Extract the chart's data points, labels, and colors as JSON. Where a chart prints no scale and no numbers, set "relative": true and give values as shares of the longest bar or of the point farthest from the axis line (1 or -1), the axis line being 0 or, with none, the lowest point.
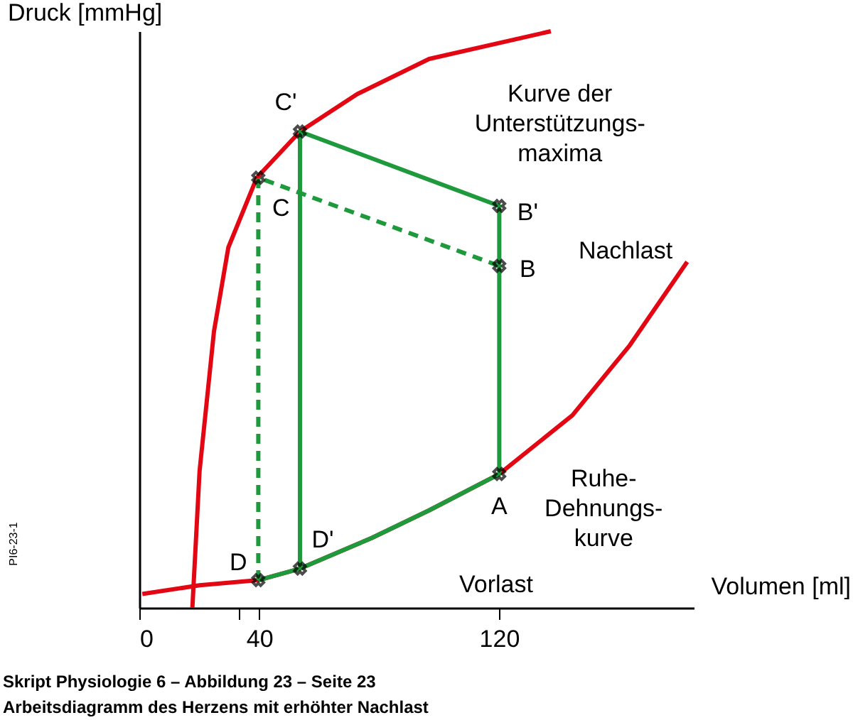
{
  "chart_data": {
    "type": "line",
    "relative": true,
    "xlabel": "Volumen [ml]",
    "ylabel": "Druck [mmHg]",
    "xlim": [
      0,
      185
    ],
    "xticks": [
      0,
      {
        "value": 33,
        "label": null
      },
      40,
      120
    ],
    "grid": false,
    "series": [
      {
        "color": "#e30613",
        "x": [
          17.7,
          20.1,
          24.9,
          29.7,
          39.2,
          53.6,
          72.7,
          96.7,
          137.3
        ],
        "values": [
          0,
          0.237,
          0.479,
          0.625,
          0.746,
          0.826,
          0.891,
          0.952,
          1.0
        ]
      },
      {
        "color": "#e30613",
        "x": [
          1.0,
          20.1,
          39.7,
          53.6,
          77.5,
          96.7,
          120.1,
          144.5,
          163.6,
          182.8
        ],
        "values": [
          0.024,
          0.039,
          0.048,
          0.068,
          0.121,
          0.169,
          0.232,
          0.334,
          0.455,
          0.6
        ]
      },
      {
        "color": "#1e9a3c",
        "x": [
          39.7,
          53.6,
          53.6,
          120.1,
          120.1,
          96.7,
          77.5,
          53.6
        ],
        "values": [
          0.048,
          0.068,
          0.826,
          0.697,
          0.232,
          0.169,
          0.121,
          0.068
        ]
      },
      {
        "color": "#1e9a3c",
        "line_style": "dashed",
        "x": [
          39.7,
          39.7,
          120.1
        ],
        "values": [
          0.048,
          0.746,
          0.593
        ]
      },
      {
        "type": "scatter",
        "marker": "cross",
        "color": "#000000",
        "x": [
          53.6,
          39.7,
          120.1,
          120.1,
          120.1,
          53.6,
          39.7
        ],
        "values": [
          0.826,
          0.746,
          0.697,
          0.593,
          0.232,
          0.068,
          0.048
        ]
      }
    ],
    "annotations": [
      {
        "text": "C'",
        "x": 53.6,
        "y": 0.826
      },
      {
        "text": "C",
        "x": 39.7,
        "y": 0.746
      },
      {
        "text": "B'",
        "x": 120.1,
        "y": 0.697
      },
      {
        "text": "B",
        "x": 120.1,
        "y": 0.593
      },
      {
        "text": "A",
        "x": 120.1,
        "y": 0.232
      },
      {
        "text": "D'",
        "x": 53.6,
        "y": 0.068
      },
      {
        "text": "D",
        "x": 39.7,
        "y": 0.048
      },
      {
        "text": "Kurve der\nUnterstützungs-\nmaxima",
        "x": 96.7,
        "y": 0.952
      },
      {
        "text": "Ruhe-\nDehnungs-\nkurve",
        "x": 144.5,
        "y": 0.334
      },
      "Nachlast",
      "Vorlast",
      "Skript Physiologie 6 – Abbildung 23 – Seite 23",
      "Arbeitsdiagramm des Herzens mit erhöhter Nachlast",
      "PI6-23-1"
    ]
  }
}
